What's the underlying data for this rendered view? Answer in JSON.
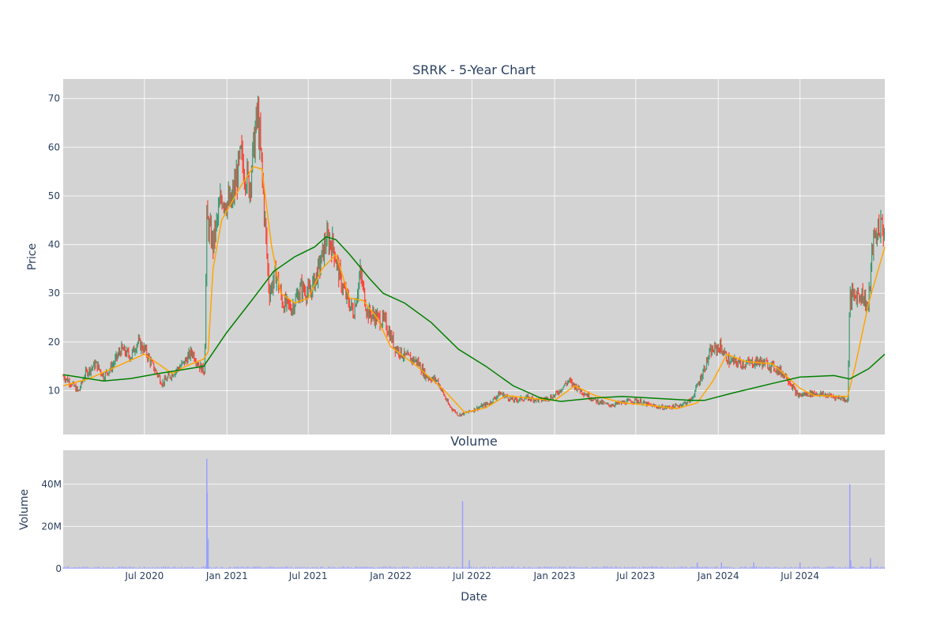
{
  "chart_data": [
    {
      "type": "candlestick",
      "title": "SRRK - 5-Year Chart",
      "ylabel": "Price",
      "xlabel": "",
      "x_range": [
        "2020-01-02",
        "2025-01-06"
      ],
      "ylim": [
        1,
        74
      ],
      "y_ticks": [
        10,
        20,
        30,
        40,
        50,
        60,
        70
      ],
      "plot_bg": "#d3d3d3",
      "grid": true,
      "colors": {
        "up": "#3d9970",
        "down": "#ff4136",
        "ma_short": "#ffa500",
        "ma_long": "#008000"
      },
      "price_path": [
        [
          "2020-01-02",
          13.0
        ],
        [
          "2020-01-20",
          11.5
        ],
        [
          "2020-02-05",
          9.8
        ],
        [
          "2020-02-20",
          13.5
        ],
        [
          "2020-03-15",
          15.5
        ],
        [
          "2020-04-01",
          13.0
        ],
        [
          "2020-04-20",
          15.0
        ],
        [
          "2020-05-10",
          18.5
        ],
        [
          "2020-06-01",
          17.0
        ],
        [
          "2020-06-15",
          20.0
        ],
        [
          "2020-07-01",
          18.5
        ],
        [
          "2020-07-20",
          15.0
        ],
        [
          "2020-08-10",
          11.5
        ],
        [
          "2020-09-01",
          13.5
        ],
        [
          "2020-09-25",
          15.5
        ],
        [
          "2020-10-15",
          18.0
        ],
        [
          "2020-11-01",
          15.0
        ],
        [
          "2020-11-12",
          14.0
        ],
        [
          "2020-11-17",
          45.0
        ],
        [
          "2020-12-01",
          40.0
        ],
        [
          "2020-12-20",
          50.0
        ],
        [
          "2021-01-10",
          48.0
        ],
        [
          "2021-02-01",
          58.0
        ],
        [
          "2021-02-20",
          52.0
        ],
        [
          "2021-03-10",
          67.0
        ],
        [
          "2021-03-20",
          55.0
        ],
        [
          "2021-04-05",
          30.0
        ],
        [
          "2021-04-20",
          34.0
        ],
        [
          "2021-05-05",
          28.0
        ],
        [
          "2021-05-25",
          27.0
        ],
        [
          "2021-06-15",
          31.0
        ],
        [
          "2021-07-05",
          30.0
        ],
        [
          "2021-07-25",
          35.0
        ],
        [
          "2021-08-10",
          41.0
        ],
        [
          "2021-08-25",
          40.0
        ],
        [
          "2021-09-10",
          33.0
        ],
        [
          "2021-09-25",
          29.0
        ],
        [
          "2021-10-10",
          26.0
        ],
        [
          "2021-10-25",
          34.0
        ],
        [
          "2021-11-10",
          26.0
        ],
        [
          "2021-12-01",
          25.0
        ],
        [
          "2021-12-20",
          24.0
        ],
        [
          "2022-01-10",
          19.0
        ],
        [
          "2022-02-01",
          17.0
        ],
        [
          "2022-03-01",
          16.0
        ],
        [
          "2022-03-20",
          13.0
        ],
        [
          "2022-04-15",
          12.0
        ],
        [
          "2022-05-10",
          7.0
        ],
        [
          "2022-06-01",
          5.0
        ],
        [
          "2022-06-20",
          5.5
        ],
        [
          "2022-07-15",
          6.5
        ],
        [
          "2022-08-10",
          7.5
        ],
        [
          "2022-09-01",
          9.5
        ],
        [
          "2022-10-01",
          8.0
        ],
        [
          "2022-11-01",
          8.5
        ],
        [
          "2022-12-01",
          8.0
        ],
        [
          "2023-01-01",
          9.0
        ],
        [
          "2023-02-01",
          12.0
        ],
        [
          "2023-03-01",
          10.0
        ],
        [
          "2023-04-01",
          8.0
        ],
        [
          "2023-05-01",
          7.0
        ],
        [
          "2023-06-01",
          7.5
        ],
        [
          "2023-07-01",
          8.0
        ],
        [
          "2023-08-01",
          7.0
        ],
        [
          "2023-09-01",
          6.5
        ],
        [
          "2023-10-01",
          6.8
        ],
        [
          "2023-11-01",
          8.0
        ],
        [
          "2023-11-20",
          12.0
        ],
        [
          "2023-12-15",
          18.0
        ],
        [
          "2024-01-05",
          19.0
        ],
        [
          "2024-01-25",
          16.0
        ],
        [
          "2024-03-01",
          15.5
        ],
        [
          "2024-04-01",
          16.0
        ],
        [
          "2024-05-01",
          15.0
        ],
        [
          "2024-06-01",
          13.0
        ],
        [
          "2024-06-25",
          9.0
        ],
        [
          "2024-08-01",
          9.5
        ],
        [
          "2024-09-01",
          9.0
        ],
        [
          "2024-10-01",
          8.5
        ],
        [
          "2024-10-15",
          8.0
        ],
        [
          "2024-10-20",
          29.0
        ],
        [
          "2024-11-15",
          30.0
        ],
        [
          "2024-11-30",
          27.0
        ],
        [
          "2024-12-10",
          40.0
        ],
        [
          "2024-12-25",
          44.0
        ],
        [
          "2025-01-06",
          43.0
        ]
      ],
      "ma_short": [
        [
          "2020-01-02",
          11.0
        ],
        [
          "2020-03-01",
          12.5
        ],
        [
          "2020-05-01",
          15.0
        ],
        [
          "2020-07-01",
          17.5
        ],
        [
          "2020-08-01",
          15.5
        ],
        [
          "2020-09-01",
          13.5
        ],
        [
          "2020-10-01",
          15.0
        ],
        [
          "2020-11-10",
          16.5
        ],
        [
          "2020-11-20",
          18.0
        ],
        [
          "2020-12-01",
          35.0
        ],
        [
          "2020-12-20",
          45.0
        ],
        [
          "2021-02-01",
          52.0
        ],
        [
          "2021-03-01",
          56.0
        ],
        [
          "2021-03-20",
          55.5
        ],
        [
          "2021-04-10",
          40.0
        ],
        [
          "2021-05-01",
          30.0
        ],
        [
          "2021-06-01",
          28.0
        ],
        [
          "2021-07-01",
          29.0
        ],
        [
          "2021-08-01",
          35.0
        ],
        [
          "2021-09-01",
          38.0
        ],
        [
          "2021-10-01",
          29.0
        ],
        [
          "2021-11-01",
          28.5
        ],
        [
          "2021-12-01",
          25.0
        ],
        [
          "2022-01-01",
          19.0
        ],
        [
          "2022-03-01",
          15.0
        ],
        [
          "2022-05-01",
          10.0
        ],
        [
          "2022-06-15",
          5.5
        ],
        [
          "2022-08-01",
          6.5
        ],
        [
          "2022-09-15",
          9.0
        ],
        [
          "2022-11-01",
          8.5
        ],
        [
          "2023-01-01",
          8.0
        ],
        [
          "2023-02-15",
          11.0
        ],
        [
          "2023-04-01",
          9.0
        ],
        [
          "2023-06-01",
          7.5
        ],
        [
          "2023-08-01",
          7.0
        ],
        [
          "2023-10-01",
          6.3
        ],
        [
          "2023-11-15",
          7.5
        ],
        [
          "2023-12-20",
          12.0
        ],
        [
          "2024-01-20",
          17.5
        ],
        [
          "2024-03-01",
          16.0
        ],
        [
          "2024-05-01",
          15.5
        ],
        [
          "2024-07-01",
          10.5
        ],
        [
          "2024-08-01",
          9.0
        ],
        [
          "2024-10-15",
          8.8
        ],
        [
          "2024-11-01",
          15.0
        ],
        [
          "2024-12-01",
          28.0
        ],
        [
          "2025-01-06",
          39.5
        ]
      ],
      "ma_long": [
        [
          "2020-01-02",
          13.3
        ],
        [
          "2020-04-01",
          12.0
        ],
        [
          "2020-06-01",
          12.5
        ],
        [
          "2020-08-01",
          13.5
        ],
        [
          "2020-11-10",
          15.0
        ],
        [
          "2021-01-01",
          22.0
        ],
        [
          "2021-03-01",
          29.0
        ],
        [
          "2021-04-15",
          34.5
        ],
        [
          "2021-06-01",
          37.5
        ],
        [
          "2021-07-15",
          39.5
        ],
        [
          "2021-08-10",
          41.6
        ],
        [
          "2021-09-01",
          41.0
        ],
        [
          "2021-10-01",
          38.0
        ],
        [
          "2021-11-15",
          33.0
        ],
        [
          "2021-12-15",
          30.0
        ],
        [
          "2022-02-01",
          28.0
        ],
        [
          "2022-04-01",
          24.0
        ],
        [
          "2022-06-01",
          18.5
        ],
        [
          "2022-08-01",
          15.0
        ],
        [
          "2022-10-01",
          11.0
        ],
        [
          "2022-12-01",
          8.5
        ],
        [
          "2023-01-15",
          7.8
        ],
        [
          "2023-04-01",
          8.5
        ],
        [
          "2023-06-01",
          8.8
        ],
        [
          "2023-08-01",
          8.5
        ],
        [
          "2023-11-01",
          8.0
        ],
        [
          "2023-12-01",
          8.0
        ],
        [
          "2024-02-01",
          9.5
        ],
        [
          "2024-05-01",
          11.5
        ],
        [
          "2024-07-01",
          12.8
        ],
        [
          "2024-09-15",
          13.1
        ],
        [
          "2024-10-20",
          12.4
        ],
        [
          "2024-12-01",
          14.5
        ],
        [
          "2025-01-06",
          17.5
        ]
      ]
    },
    {
      "type": "bar",
      "title": "Volume",
      "xlabel": "Date",
      "ylabel": "Volume",
      "ylim": [
        0,
        56
      ],
      "y_unit": "M",
      "y_ticks": [
        0,
        20,
        40
      ],
      "y_tick_labels": [
        "0",
        "20M",
        "40M"
      ],
      "x_ticks": [
        "2020-07-01",
        "2021-01-01",
        "2021-07-01",
        "2022-01-01",
        "2022-07-01",
        "2023-01-01",
        "2023-07-01",
        "2024-01-01",
        "2024-07-01"
      ],
      "x_tick_labels": [
        "Jul 2020",
        "Jan 2021",
        "Jul 2021",
        "Jan 2022",
        "Jul 2022",
        "Jan 2023",
        "Jul 2023",
        "Jan 2024",
        "Jul 2024"
      ],
      "bar_color": "#9aa0ff",
      "spikes": [
        [
          "2020-11-17",
          52
        ],
        [
          "2020-11-18",
          36
        ],
        [
          "2020-11-20",
          14
        ],
        [
          "2022-06-10",
          32
        ],
        [
          "2022-06-25",
          4
        ],
        [
          "2024-10-20",
          40
        ],
        [
          "2024-10-22",
          4
        ],
        [
          "2024-12-05",
          5
        ],
        [
          "2023-11-15",
          3
        ],
        [
          "2024-01-08",
          3
        ],
        [
          "2024-03-20",
          3
        ],
        [
          "2024-07-01",
          3
        ]
      ],
      "baseline": 0.8
    }
  ]
}
